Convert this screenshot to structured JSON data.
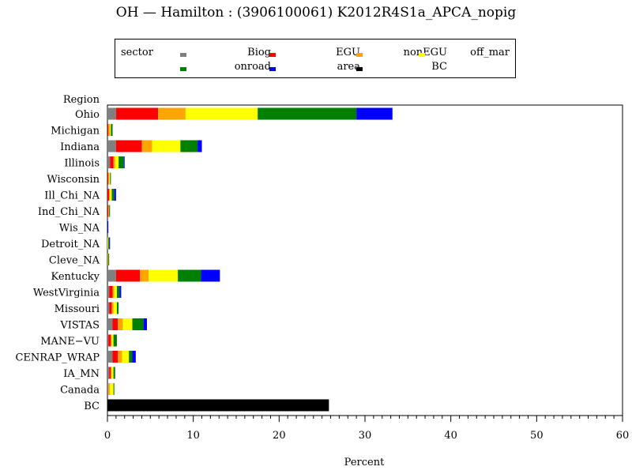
{
  "chart_data": {
    "type": "bar",
    "orientation": "horizontal",
    "stacked": true,
    "title": "OH  —  Hamilton : (3906100061)  K2012R4S1a_APCA_nopig",
    "xlabel": "Percent",
    "ylabel": "Region",
    "xlim": [
      0,
      60
    ],
    "x_ticks": [
      0,
      10,
      20,
      30,
      40,
      50,
      60
    ],
    "x_minor_step": 1,
    "grid": false,
    "legend_placement": "top",
    "legend_title": "sector",
    "categories": [
      "Ohio",
      "Michigan",
      "Indiana",
      "Illinois",
      "Wisconsin",
      "Ill_Chi_NA",
      "Ind_Chi_NA",
      "Wis_NA",
      "Detroit_NA",
      "Cleve_NA",
      "Kentucky",
      "WestVirginia",
      "Missouri",
      "VISTAS",
      "MANE−VU",
      "CENRAP_WRAP",
      "IA_MN",
      "Canada",
      "BC"
    ],
    "series": [
      {
        "name": "Biog",
        "color": "#808080",
        "values": [
          1.0,
          0.0,
          1.0,
          0.3,
          0.0,
          0.0,
          0.0,
          0.0,
          0.0,
          0.0,
          1.0,
          0.2,
          0.2,
          0.6,
          0.1,
          0.6,
          0.2,
          0.1,
          0
        ]
      },
      {
        "name": "EGU",
        "color": "#ff0000",
        "values": [
          4.9,
          0.1,
          3.0,
          0.4,
          0.1,
          0.2,
          0.1,
          0.0,
          0.0,
          0.0,
          2.8,
          0.4,
          0.3,
          0.6,
          0.3,
          0.6,
          0.2,
          0.0,
          0
        ]
      },
      {
        "name": "nonEGU",
        "color": "#ffa500",
        "values": [
          3.2,
          0.2,
          1.2,
          0.2,
          0.1,
          0.1,
          0.1,
          0.0,
          0.0,
          0.1,
          1.0,
          0.2,
          0.2,
          0.6,
          0.1,
          0.5,
          0.1,
          0.2,
          0
        ]
      },
      {
        "name": "off_mar",
        "color": "#ffff00",
        "values": [
          8.4,
          0.1,
          3.3,
          0.4,
          0.1,
          0.2,
          0.0,
          0.0,
          0.1,
          0.0,
          3.4,
          0.3,
          0.4,
          1.1,
          0.2,
          0.8,
          0.2,
          0.4,
          0
        ]
      },
      {
        "name": "onroad",
        "color": "#008000",
        "values": [
          11.5,
          0.2,
          2.0,
          0.6,
          0.1,
          0.3,
          0.1,
          0.0,
          0.1,
          0.1,
          2.7,
          0.3,
          0.2,
          1.3,
          0.4,
          0.4,
          0.2,
          0.1,
          0
        ]
      },
      {
        "name": "area",
        "color": "#0000ff",
        "values": [
          4.2,
          0.0,
          0.5,
          0.1,
          0.0,
          0.2,
          0.0,
          0.1,
          0.1,
          0.0,
          2.2,
          0.2,
          0.0,
          0.4,
          0.0,
          0.4,
          0.0,
          0.0,
          0
        ]
      },
      {
        "name": "BC",
        "color": "#000000",
        "values": [
          0,
          0,
          0,
          0,
          0,
          0,
          0,
          0,
          0,
          0,
          0,
          0,
          0,
          0,
          0,
          0,
          0,
          0,
          25.8
        ]
      }
    ]
  }
}
